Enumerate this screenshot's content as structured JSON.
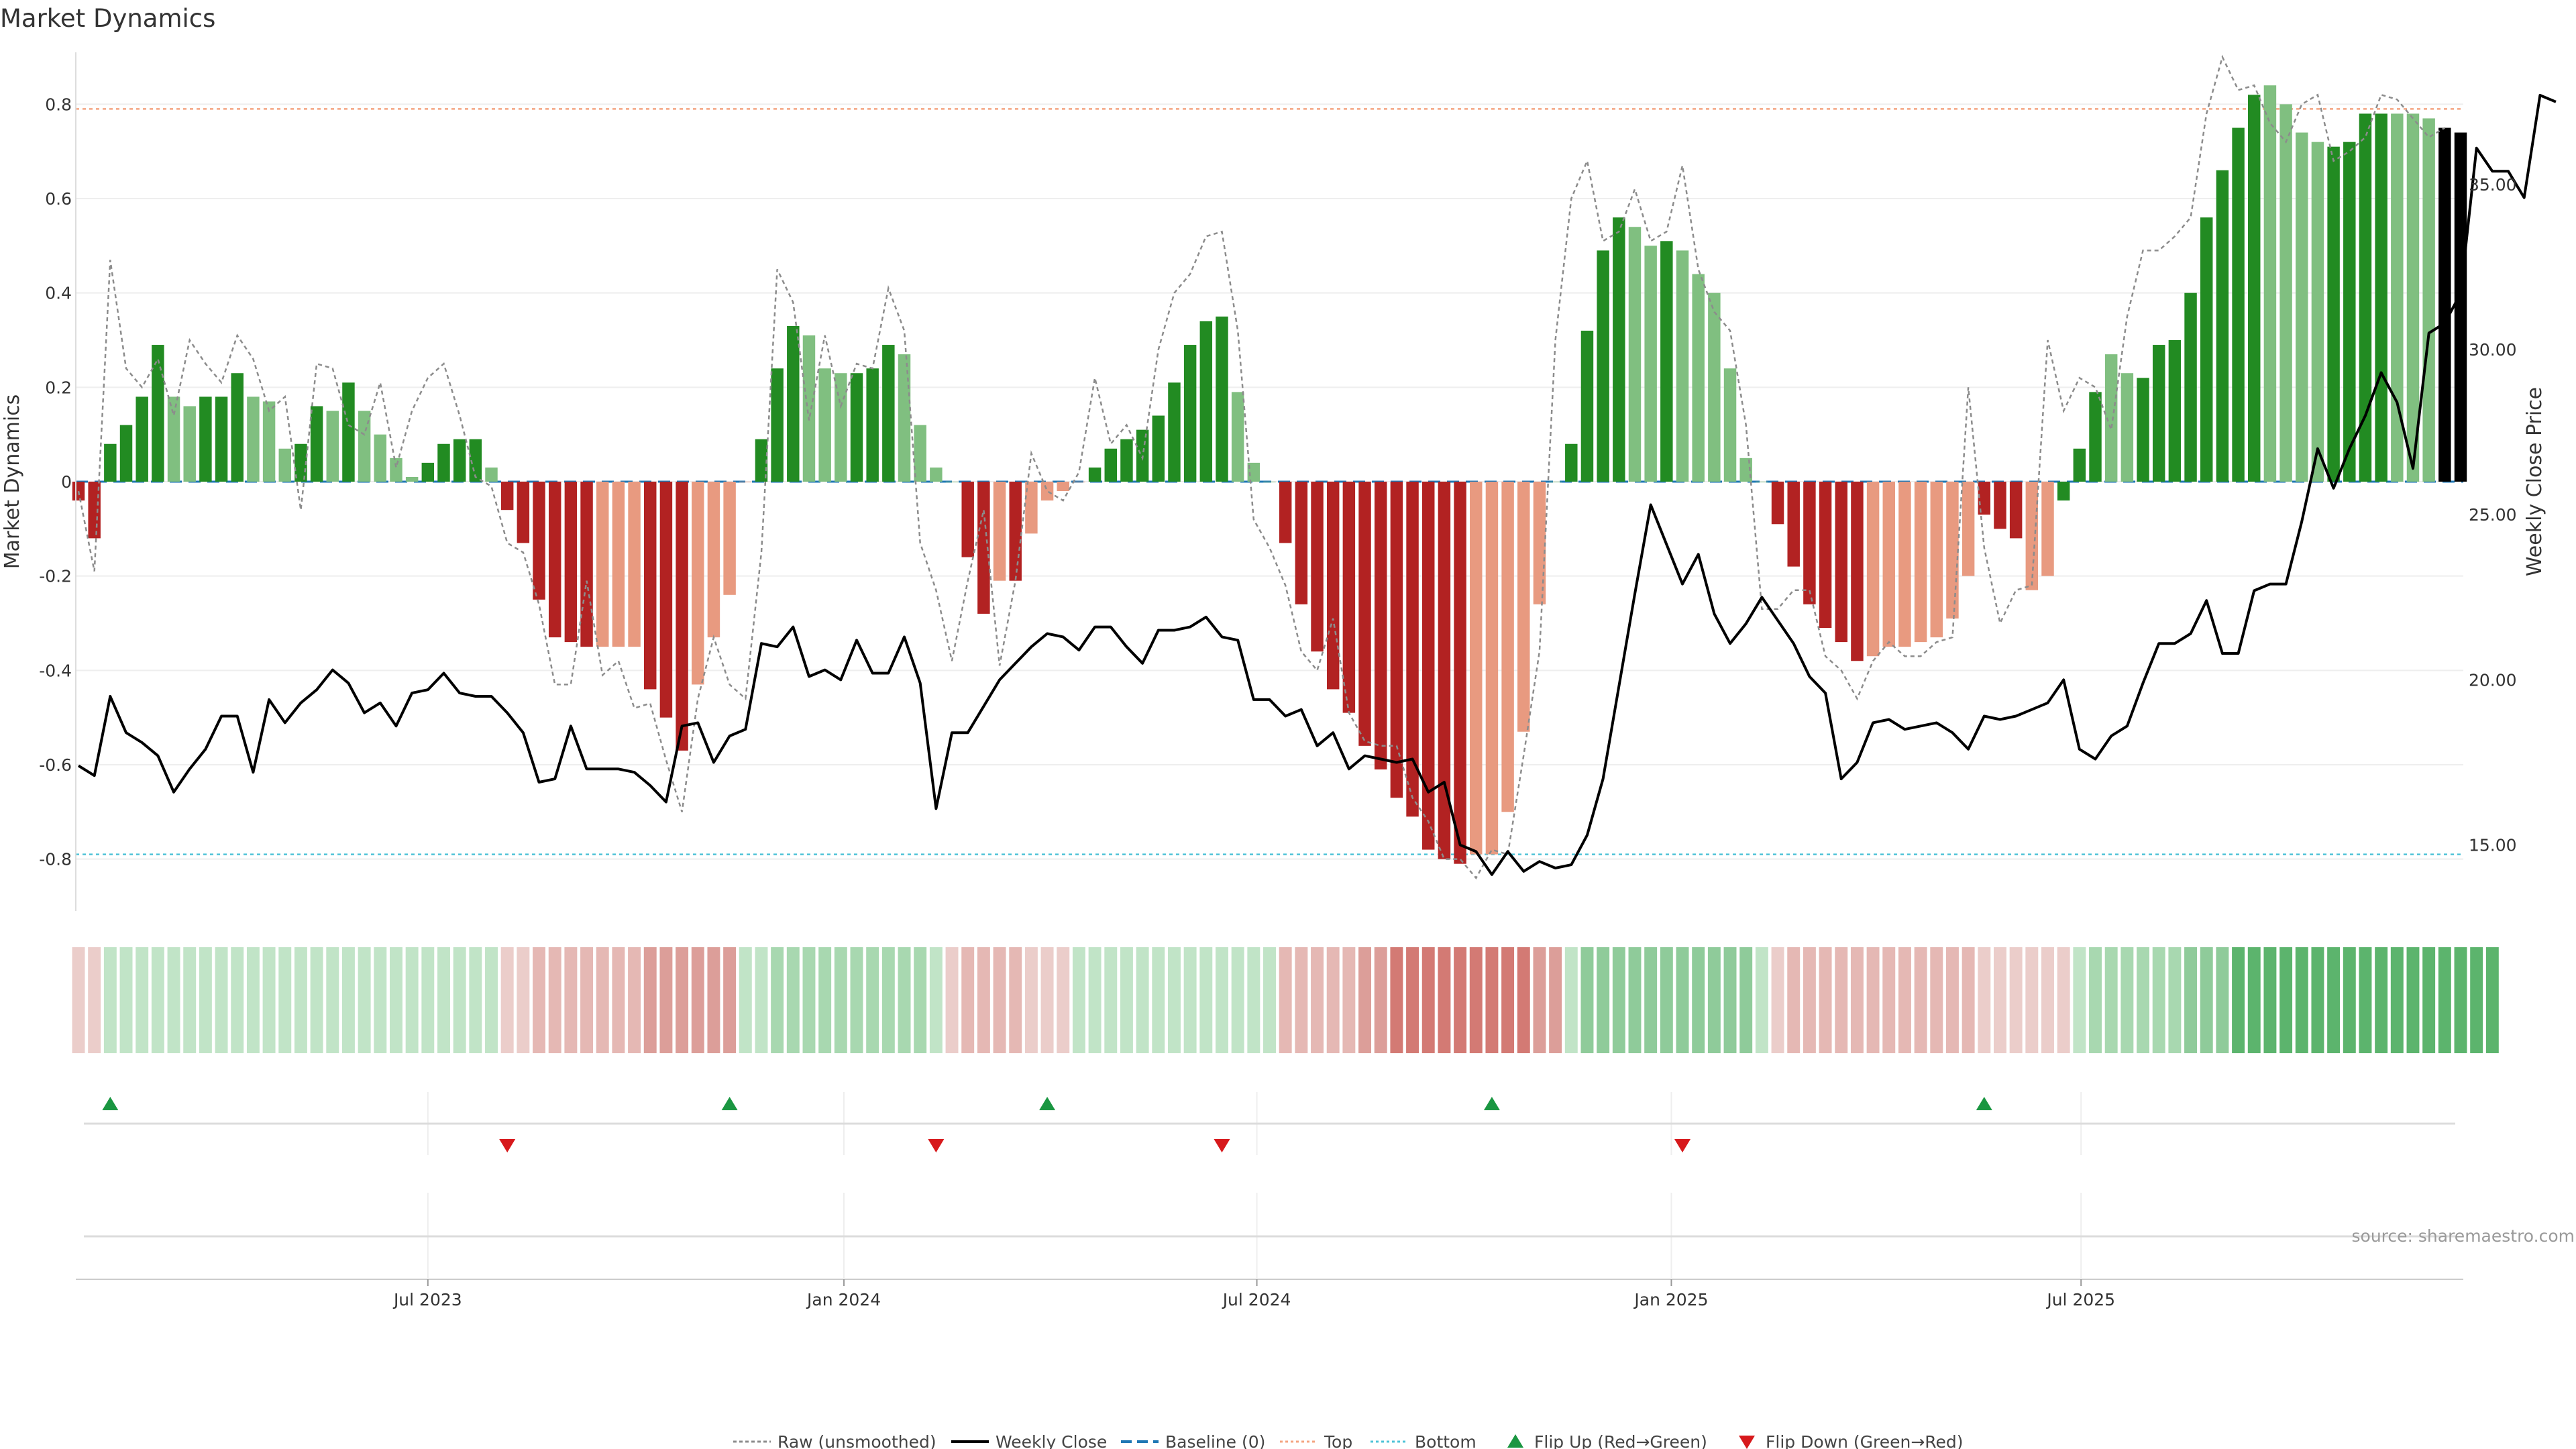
{
  "chart_data": {
    "type": "bar",
    "title": "Market Dynamics",
    "ylabel_left": "Market Dynamics",
    "ylabel_right": "Weekly Close Price",
    "ylim_left": [
      -0.91,
      0.91
    ],
    "ylim_right": [
      13.0,
      39.0
    ],
    "left_ticks": [
      {
        "v": 0.8,
        "label": "0.8"
      },
      {
        "v": 0.6,
        "label": "0.6"
      },
      {
        "v": 0.4,
        "label": "0.4"
      },
      {
        "v": 0.2,
        "label": "0.2"
      },
      {
        "v": 0,
        "label": "0"
      },
      {
        "v": -0.2,
        "label": "-0.2"
      },
      {
        "v": -0.4,
        "label": "-0.4"
      },
      {
        "v": -0.6,
        "label": "-0.6"
      },
      {
        "v": -0.8,
        "label": "-0.8"
      }
    ],
    "right_ticks": [
      {
        "v": 35,
        "label": "35.00"
      },
      {
        "v": 30,
        "label": "30.00"
      },
      {
        "v": 25,
        "label": "25.00"
      },
      {
        "v": 20,
        "label": "20.00"
      },
      {
        "v": 15,
        "label": "15.00"
      }
    ],
    "x_ticks": [
      {
        "i": 22,
        "label": "Jul 2023"
      },
      {
        "i": 48.2,
        "label": "Jan 2024"
      },
      {
        "i": 74.2,
        "label": "Jul 2024"
      },
      {
        "i": 100.3,
        "label": "Jan 2025"
      },
      {
        "i": 126.1,
        "label": "Jul 2025"
      }
    ],
    "top_line": 0.79,
    "bottom_line": -0.79,
    "baseline": 0,
    "momentum": [
      -0.04,
      -0.12,
      0.08,
      0.12,
      0.18,
      0.29,
      0.18,
      0.16,
      0.18,
      0.18,
      0.23,
      0.18,
      0.17,
      0.07,
      0.08,
      0.16,
      0.15,
      0.21,
      0.15,
      0.1,
      0.05,
      0.01,
      0.04,
      0.08,
      0.09,
      0.09,
      0.03,
      -0.06,
      -0.13,
      -0.25,
      -0.33,
      -0.34,
      -0.35,
      -0.35,
      -0.35,
      -0.35,
      -0.44,
      -0.5,
      -0.57,
      -0.43,
      -0.33,
      -0.24,
      0.0,
      0.09,
      0.24,
      0.33,
      0.31,
      0.24,
      0.23,
      0.23,
      0.24,
      0.29,
      0.27,
      0.12,
      0.03,
      0.0,
      -0.16,
      -0.28,
      -0.21,
      -0.21,
      -0.11,
      -0.04,
      -0.02,
      0.0,
      0.03,
      0.07,
      0.09,
      0.11,
      0.14,
      0.21,
      0.29,
      0.34,
      0.35,
      0.19,
      0.04,
      0.0,
      -0.13,
      -0.26,
      -0.36,
      -0.44,
      -0.49,
      -0.56,
      -0.61,
      -0.67,
      -0.71,
      -0.78,
      -0.8,
      -0.81,
      -0.79,
      -0.79,
      -0.7,
      -0.53,
      -0.26,
      0.0,
      0.08,
      0.32,
      0.49,
      0.56,
      0.54,
      0.5,
      0.51,
      0.49,
      0.44,
      0.4,
      0.24,
      0.05,
      0.0,
      -0.09,
      -0.18,
      -0.26,
      -0.31,
      -0.34,
      -0.38,
      -0.37,
      -0.35,
      -0.35,
      -0.34,
      -0.33,
      -0.29,
      -0.2,
      -0.07,
      -0.1,
      -0.12,
      -0.23,
      -0.2,
      -0.04,
      0.07,
      0.19,
      0.27,
      0.23,
      0.22,
      0.29,
      0.3,
      0.4,
      0.56,
      0.66,
      0.75,
      0.82,
      0.84,
      0.8,
      0.74,
      0.72,
      0.71,
      0.72,
      0.78,
      0.78,
      0.78,
      0.78,
      0.77,
      0.75,
      0.74
    ],
    "momentum_colors": [
      "#b22222",
      "#b22222",
      "#228b22",
      "#228b22",
      "#228b22",
      "#228b22",
      "#80bf80",
      "#80bf80",
      "#228b22",
      "#228b22",
      "#228b22",
      "#80bf80",
      "#80bf80",
      "#80bf80",
      "#228b22",
      "#228b22",
      "#80bf80",
      "#228b22",
      "#80bf80",
      "#80bf80",
      "#80bf80",
      "#80bf80",
      "#228b22",
      "#228b22",
      "#228b22",
      "#228b22",
      "#80bf80",
      "#b22222",
      "#b22222",
      "#b22222",
      "#b22222",
      "#b22222",
      "#b22222",
      "#e89a80",
      "#e89a80",
      "#e89a80",
      "#b22222",
      "#b22222",
      "#b22222",
      "#e89a80",
      "#e89a80",
      "#e89a80",
      "#e89a80",
      "#228b22",
      "#228b22",
      "#228b22",
      "#80bf80",
      "#80bf80",
      "#80bf80",
      "#228b22",
      "#228b22",
      "#228b22",
      "#80bf80",
      "#80bf80",
      "#80bf80",
      "#80bf80",
      "#b22222",
      "#b22222",
      "#e89a80",
      "#b22222",
      "#e89a80",
      "#e89a80",
      "#e89a80",
      "#e89a80",
      "#228b22",
      "#228b22",
      "#228b22",
      "#228b22",
      "#228b22",
      "#228b22",
      "#228b22",
      "#228b22",
      "#228b22",
      "#80bf80",
      "#80bf80",
      "#80bf80",
      "#b22222",
      "#b22222",
      "#b22222",
      "#b22222",
      "#b22222",
      "#b22222",
      "#b22222",
      "#b22222",
      "#b22222",
      "#b22222",
      "#b22222",
      "#b22222",
      "#e89a80",
      "#e89a80",
      "#e89a80",
      "#e89a80",
      "#e89a80",
      "#80bf80",
      "#228b22",
      "#228b22",
      "#228b22",
      "#228b22",
      "#80bf80",
      "#80bf80",
      "#228b22",
      "#80bf80",
      "#80bf80",
      "#80bf80",
      "#80bf80",
      "#80bf80",
      "#80bf80",
      "#b22222",
      "#b22222",
      "#b22222",
      "#b22222",
      "#b22222",
      "#b22222",
      "#e89a80",
      "#e89a80",
      "#e89a80",
      "#e89a80",
      "#e89a80",
      "#e89a80",
      "#e89a80",
      "#b22222",
      "#b22222",
      "#b22222",
      "#e89a80",
      "#e89a80",
      "#228b22",
      "#228b22",
      "#228b22",
      "#80bf80",
      "#80bf80",
      "#228b22",
      "#228b22",
      "#228b22",
      "#228b22",
      "#228b22",
      "#228b22",
      "#228b22",
      "#228b22",
      "#80bf80",
      "#80bf80",
      "#80bf80",
      "#80bf80",
      "#228b22",
      "#228b22",
      "#228b22",
      "#228b22",
      "#80bf80",
      "#80bf80",
      "#80bf80"
    ],
    "raw": [
      -0.02,
      -0.19,
      0.47,
      0.24,
      0.2,
      0.26,
      0.14,
      0.3,
      0.25,
      0.21,
      0.31,
      0.26,
      0.15,
      0.18,
      -0.06,
      0.25,
      0.24,
      0.12,
      0.1,
      0.21,
      0.03,
      0.15,
      0.22,
      0.25,
      0.14,
      0.01,
      -0.01,
      -0.13,
      -0.15,
      -0.26,
      -0.43,
      -0.43,
      -0.21,
      -0.41,
      -0.38,
      -0.48,
      -0.47,
      -0.59,
      -0.7,
      -0.46,
      -0.33,
      -0.43,
      -0.46,
      -0.15,
      0.45,
      0.38,
      0.13,
      0.31,
      0.16,
      0.25,
      0.24,
      0.41,
      0.32,
      -0.13,
      -0.23,
      -0.38,
      -0.21,
      -0.06,
      -0.39,
      -0.21,
      0.06,
      -0.02,
      -0.04,
      0.02,
      0.22,
      0.08,
      0.12,
      0.05,
      0.28,
      0.4,
      0.44,
      0.52,
      0.53,
      0.32,
      -0.08,
      -0.14,
      -0.22,
      -0.36,
      -0.4,
      -0.29,
      -0.49,
      -0.55,
      -0.56,
      -0.56,
      -0.67,
      -0.72,
      -0.8,
      -0.8,
      -0.84,
      -0.78,
      -0.79,
      -0.58,
      -0.36,
      0.3,
      0.6,
      0.68,
      0.51,
      0.53,
      0.62,
      0.51,
      0.53,
      0.67,
      0.45,
      0.36,
      0.32,
      0.12,
      -0.27,
      -0.27,
      -0.23,
      -0.23,
      -0.37,
      -0.4,
      -0.46,
      -0.38,
      -0.34,
      -0.37,
      -0.37,
      -0.34,
      -0.33,
      0.2,
      -0.14,
      -0.3,
      -0.23,
      -0.22,
      0.3,
      0.15,
      0.22,
      0.2,
      0.11,
      0.35,
      0.49,
      0.49,
      0.52,
      0.56,
      0.78,
      0.9,
      0.83,
      0.84,
      0.76,
      0.72,
      0.8,
      0.82,
      0.68,
      0.7,
      0.73,
      0.82,
      0.81,
      0.77,
      0.73,
      0.75
    ],
    "close": [
      17.4,
      17.1,
      19.5,
      18.4,
      18.1,
      17.7,
      16.6,
      17.3,
      17.9,
      18.9,
      18.9,
      17.2,
      19.4,
      18.7,
      19.3,
      19.7,
      20.3,
      19.9,
      19.0,
      19.3,
      18.6,
      19.6,
      19.7,
      20.2,
      19.6,
      19.5,
      19.5,
      19.0,
      18.4,
      16.9,
      17.0,
      18.6,
      17.3,
      17.3,
      17.3,
      17.2,
      16.8,
      16.3,
      18.6,
      18.7,
      17.5,
      18.3,
      18.5,
      21.1,
      21.0,
      21.6,
      20.1,
      20.3,
      20.0,
      21.2,
      20.2,
      20.2,
      21.3,
      19.9,
      16.1,
      18.4,
      18.4,
      19.2,
      20.0,
      20.5,
      21.0,
      21.4,
      21.3,
      20.9,
      21.6,
      21.6,
      21.0,
      20.5,
      21.5,
      21.5,
      21.6,
      21.9,
      21.3,
      21.2,
      19.4,
      19.4,
      18.9,
      19.1,
      18.0,
      18.4,
      17.3,
      17.7,
      17.6,
      17.5,
      17.6,
      16.6,
      16.9,
      15.0,
      14.8,
      14.1,
      14.8,
      14.2,
      14.5,
      14.3,
      14.4,
      15.3,
      17.0,
      19.8,
      22.6,
      25.3,
      24.1,
      22.9,
      23.8,
      22.0,
      21.1,
      21.7,
      22.5,
      21.8,
      21.1,
      20.1,
      19.6,
      17.0,
      17.5,
      18.7,
      18.8,
      18.5,
      18.6,
      18.7,
      18.4,
      17.9,
      18.9,
      18.8,
      18.9,
      19.1,
      19.3,
      20.0,
      17.9,
      17.6,
      18.3,
      18.6,
      19.9,
      21.1,
      21.1,
      21.4,
      22.4,
      20.8,
      20.8,
      22.7,
      22.9,
      22.9,
      24.8,
      27.0,
      25.8,
      27.0,
      28.0,
      29.3,
      28.4,
      26.4,
      30.5,
      30.8,
      31.7,
      36.1,
      35.4,
      35.4,
      34.6,
      37.7,
      37.5
    ],
    "regime_colors": [
      "#ebcdca",
      "#ebcdca",
      "#c1e4c7",
      "#c1e4c7",
      "#c1e4c7",
      "#c1e4c7",
      "#c1e4c7",
      "#c1e4c7",
      "#c1e4c7",
      "#c1e4c7",
      "#c1e4c7",
      "#c1e4c7",
      "#c1e4c7",
      "#c1e4c7",
      "#c1e4c7",
      "#c1e4c7",
      "#c1e4c7",
      "#c1e4c7",
      "#c1e4c7",
      "#c1e4c7",
      "#c1e4c7",
      "#c1e4c7",
      "#c1e4c7",
      "#c1e4c7",
      "#c1e4c7",
      "#c1e4c7",
      "#c1e4c7",
      "#ebcdca",
      "#ebcdca",
      "#e5b8b4",
      "#e5b8b4",
      "#e5b8b4",
      "#e5b8b4",
      "#e5b8b4",
      "#e5b8b4",
      "#e5b8b4",
      "#dc9e99",
      "#dc9e99",
      "#dc9e99",
      "#dc9e99",
      "#dc9e99",
      "#dc9e99",
      "#c1e4c7",
      "#c1e4c7",
      "#a8d8b0",
      "#a8d8b0",
      "#a8d8b0",
      "#a8d8b0",
      "#a8d8b0",
      "#a8d8b0",
      "#a8d8b0",
      "#a8d8b0",
      "#a8d8b0",
      "#a8d8b0",
      "#c1e4c7",
      "#ebcdca",
      "#e5b8b4",
      "#e5b8b4",
      "#e5b8b4",
      "#e5b8b4",
      "#ebcdca",
      "#ebcdca",
      "#ebcdca",
      "#c1e4c7",
      "#c1e4c7",
      "#c1e4c7",
      "#c1e4c7",
      "#c1e4c7",
      "#c1e4c7",
      "#c1e4c7",
      "#c1e4c7",
      "#c1e4c7",
      "#c1e4c7",
      "#c1e4c7",
      "#c1e4c7",
      "#c1e4c7",
      "#e5b8b4",
      "#e5b8b4",
      "#e5b8b4",
      "#e5b8b4",
      "#e5b8b4",
      "#dc9e99",
      "#dc9e99",
      "#d37a74",
      "#d37a74",
      "#d37a74",
      "#d37a74",
      "#d37a74",
      "#d37a74",
      "#d37a74",
      "#d37a74",
      "#d37a74",
      "#dc9e99",
      "#dc9e99",
      "#c1e4c7",
      "#8fcb9a",
      "#8fcb9a",
      "#8fcb9a",
      "#8fcb9a",
      "#8fcb9a",
      "#8fcb9a",
      "#8fcb9a",
      "#8fcb9a",
      "#8fcb9a",
      "#8fcb9a",
      "#8fcb9a",
      "#c1e4c7",
      "#ebcdca",
      "#e5b8b4",
      "#e5b8b4",
      "#e5b8b4",
      "#e5b8b4",
      "#e5b8b4",
      "#e5b8b4",
      "#e5b8b4",
      "#e5b8b4",
      "#e5b8b4",
      "#e5b8b4",
      "#e5b8b4",
      "#e5b8b4",
      "#ebcdca",
      "#ebcdca",
      "#ebcdca",
      "#ebcdca",
      "#ebcdca",
      "#ebcdca",
      "#c1e4c7",
      "#a8d8b0",
      "#a8d8b0",
      "#a8d8b0",
      "#a8d8b0",
      "#a8d8b0",
      "#a8d8b0",
      "#8fcb9a",
      "#8fcb9a",
      "#8fcb9a",
      "#5cb46d",
      "#5cb46d",
      "#5cb46d",
      "#5cb46d",
      "#5cb46d",
      "#5cb46d",
      "#5cb46d",
      "#5cb46d",
      "#5cb46d",
      "#5cb46d",
      "#5cb46d",
      "#5cb46d",
      "#5cb46d",
      "#5cb46d",
      "#5cb46d",
      "#5cb46d",
      "#5cb46d"
    ],
    "flip_up": [
      2,
      41,
      61,
      89,
      120
    ],
    "flip_down": [
      27,
      54,
      72,
      101
    ],
    "colors": {
      "raw": "#8c8c8c",
      "close": "#000000",
      "baseline": "#1f77b4",
      "top": "#f4a582",
      "bottom": "#4fc3d7",
      "flip_up": "#1a9641",
      "flip_down": "#d7191c"
    },
    "legend": [
      {
        "key": "raw",
        "label": "Raw (unsmoothed)"
      },
      {
        "key": "close",
        "label": "Weekly Close"
      },
      {
        "key": "baseline",
        "label": "Baseline (0)"
      },
      {
        "key": "top",
        "label": "Top"
      },
      {
        "key": "bottom",
        "label": "Bottom"
      },
      {
        "key": "flip_up",
        "label": "Flip Up (Red→Green)"
      },
      {
        "key": "flip_down",
        "label": "Flip Down (Green→Red)"
      }
    ],
    "source": "source: sharemaestro.com"
  }
}
